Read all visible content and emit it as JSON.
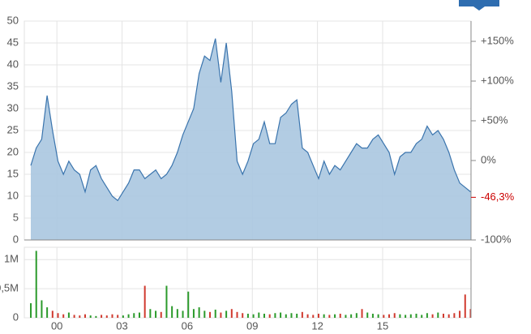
{
  "chart_data": [
    {
      "type": "area",
      "x": [
        1998.8,
        1999.05,
        1999.3,
        1999.55,
        1999.8,
        2000.05,
        2000.3,
        2000.55,
        2000.8,
        2001.05,
        2001.3,
        2001.55,
        2001.8,
        2002.05,
        2002.3,
        2002.55,
        2002.8,
        2003.05,
        2003.3,
        2003.55,
        2003.8,
        2004.05,
        2004.3,
        2004.55,
        2004.8,
        2005.05,
        2005.3,
        2005.55,
        2005.8,
        2006.05,
        2006.3,
        2006.55,
        2006.8,
        2007.05,
        2007.3,
        2007.55,
        2007.8,
        2008.05,
        2008.3,
        2008.55,
        2008.8,
        2009.05,
        2009.3,
        2009.55,
        2009.8,
        2010.05,
        2010.3,
        2010.55,
        2010.8,
        2011.05,
        2011.3,
        2011.55,
        2011.8,
        2012.05,
        2012.3,
        2012.55,
        2012.8,
        2013.05,
        2013.3,
        2013.55,
        2013.8,
        2014.05,
        2014.3,
        2014.55,
        2014.8,
        2015.05,
        2015.3,
        2015.55,
        2015.8,
        2016.05,
        2016.3,
        2016.55,
        2016.8,
        2017.05,
        2017.3,
        2017.55,
        2017.8,
        2018.05,
        2018.3,
        2018.55,
        2018.8,
        2019.05
      ],
      "values": [
        17,
        21,
        23,
        33,
        25,
        18,
        15,
        18,
        16,
        15,
        11,
        16,
        17,
        14,
        12,
        10,
        9,
        11,
        13,
        16,
        16,
        14,
        15,
        16,
        14,
        15,
        17,
        20,
        24,
        27,
        30,
        38,
        42,
        41,
        46,
        36,
        45,
        34,
        18,
        15,
        18,
        22,
        23,
        27,
        22,
        22,
        28,
        29,
        31,
        32,
        21,
        20,
        17,
        14,
        18,
        15,
        17,
        16,
        18,
        20,
        22,
        21,
        21,
        23,
        24,
        22,
        20,
        15,
        19,
        20,
        20,
        22,
        23,
        26,
        24,
        25,
        23,
        20,
        16,
        13,
        12,
        11
      ],
      "color": "#3a74ad",
      "fill": "#aac6e0",
      "xlim": [
        1998.5,
        2019.07
      ],
      "ylim": [
        0,
        50
      ],
      "yticks": [
        0,
        5,
        10,
        15,
        20,
        25,
        30,
        35,
        40,
        45,
        50
      ],
      "y2lim": [
        -100,
        175.5
      ],
      "y2ticks": [
        {
          "value": -100,
          "label": "-100%"
        },
        {
          "value": 0,
          "label": "0%"
        },
        {
          "value": 50,
          "label": "+50%"
        },
        {
          "value": 100,
          "label": "+100%"
        },
        {
          "value": 150,
          "label": "+150%"
        }
      ],
      "current_change": {
        "value": -46.3,
        "label": "-46,3%",
        "color": "#cc0000"
      },
      "grid": true
    },
    {
      "type": "bar",
      "x": [
        1998.8,
        1999.05,
        1999.3,
        1999.55,
        1999.8,
        2000.05,
        2000.3,
        2000.55,
        2000.8,
        2001.05,
        2001.3,
        2001.55,
        2001.8,
        2002.05,
        2002.3,
        2002.55,
        2002.8,
        2003.05,
        2003.3,
        2003.55,
        2003.8,
        2004.05,
        2004.3,
        2004.55,
        2004.8,
        2005.05,
        2005.3,
        2005.55,
        2005.8,
        2006.05,
        2006.3,
        2006.55,
        2006.8,
        2007.05,
        2007.3,
        2007.55,
        2007.8,
        2008.05,
        2008.3,
        2008.55,
        2008.8,
        2009.05,
        2009.3,
        2009.55,
        2009.8,
        2010.05,
        2010.3,
        2010.55,
        2010.8,
        2011.05,
        2011.3,
        2011.55,
        2011.8,
        2012.05,
        2012.3,
        2012.55,
        2012.8,
        2013.05,
        2013.3,
        2013.55,
        2013.8,
        2014.05,
        2014.3,
        2014.55,
        2014.8,
        2015.05,
        2015.3,
        2015.55,
        2015.8,
        2016.05,
        2016.3,
        2016.55,
        2016.8,
        2017.05,
        2017.3,
        2017.55,
        2017.8,
        2018.05,
        2018.3,
        2018.55,
        2018.8,
        2019.05
      ],
      "values": [
        250000,
        1150000,
        300000,
        180000,
        120000,
        80000,
        60000,
        90000,
        50000,
        40000,
        60000,
        40000,
        30000,
        50000,
        40000,
        60000,
        50000,
        40000,
        60000,
        80000,
        90000,
        550000,
        150000,
        120000,
        100000,
        550000,
        200000,
        150000,
        120000,
        450000,
        150000,
        180000,
        120000,
        100000,
        140000,
        90000,
        120000,
        150000,
        100000,
        80000,
        70000,
        60000,
        90000,
        70000,
        60000,
        80000,
        90000,
        60000,
        80000,
        70000,
        100000,
        60000,
        50000,
        70000,
        60000,
        50000,
        60000,
        70000,
        50000,
        60000,
        80000,
        150000,
        90000,
        70000,
        60000,
        50000,
        60000,
        80000,
        60000,
        50000,
        60000,
        70000,
        50000,
        80000,
        60000,
        90000,
        70000,
        60000,
        80000,
        120000,
        400000,
        150000
      ],
      "up_color": "#2b9a2b",
      "down_color": "#d03a2f",
      "xlim": [
        1998.5,
        2019.07
      ],
      "ylim": [
        0,
        1170000
      ],
      "yticks": [
        0,
        {
          "value": 500000,
          "label": "0,5M"
        },
        {
          "value": 1000000,
          "label": "1M"
        }
      ],
      "xticks": [
        {
          "value": 2000,
          "label": "00"
        },
        {
          "value": 2003,
          "label": "03"
        },
        {
          "value": 2006,
          "label": "06"
        },
        {
          "value": 2009,
          "label": "09"
        },
        {
          "value": 2012,
          "label": "12"
        },
        {
          "value": 2015,
          "label": "15"
        }
      ],
      "grid": true
    }
  ]
}
